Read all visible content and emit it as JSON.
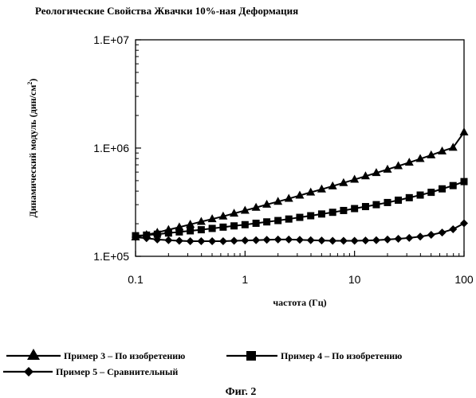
{
  "chart_data": {
    "type": "line",
    "title": "Реологические Свойства Жвачки 10%-ная Деформация",
    "xlabel": "частота (Гц)",
    "ylabel_main": "Динамический модуль (дин/см",
    "ylabel_sup": "2",
    "ylabel_tail": ")",
    "x_scale": "log",
    "y_scale": "log",
    "xlim": [
      0.1,
      100
    ],
    "ylim": [
      100000,
      10000000
    ],
    "x_ticks": [
      {
        "value": 0.1,
        "label": "0.1"
      },
      {
        "value": 1,
        "label": "1"
      },
      {
        "value": 10,
        "label": "10"
      },
      {
        "value": 100,
        "label": "100"
      }
    ],
    "y_ticks": [
      {
        "value": 100000,
        "label": "1.E+05"
      },
      {
        "value": 1000000,
        "label": "1.E+06"
      },
      {
        "value": 10000000,
        "label": "1.E+07"
      }
    ],
    "grid": false,
    "legend_position": "bottom",
    "x": [
      0.1,
      0.126,
      0.158,
      0.2,
      0.251,
      0.316,
      0.398,
      0.501,
      0.631,
      0.794,
      1,
      1.26,
      1.58,
      2,
      2.51,
      3.16,
      3.98,
      5.01,
      6.31,
      7.94,
      10,
      12.6,
      15.8,
      20,
      25.1,
      31.6,
      39.8,
      50.1,
      63.1,
      79.4,
      100
    ],
    "series": [
      {
        "name": "Пример 3 – По изобретению",
        "marker": "triangle",
        "values": [
          150000,
          158000,
          166000,
          176000,
          186000,
          197000,
          209000,
          221000,
          234000,
          249000,
          265000,
          282000,
          301000,
          320000,
          341000,
          365000,
          390000,
          416000,
          445000,
          477000,
          512000,
          550000,
          590000,
          635000,
          683000,
          735000,
          795000,
          860000,
          935000,
          1010000,
          1400000
        ]
      },
      {
        "name": "Пример 4 – По изобретению",
        "marker": "square",
        "values": [
          155000,
          157000,
          160000,
          164000,
          168000,
          172000,
          176000,
          181000,
          186000,
          191000,
          196000,
          202000,
          208000,
          214000,
          221000,
          229000,
          237000,
          246000,
          255000,
          265000,
          276000,
          288000,
          300000,
          314000,
          330000,
          348000,
          368000,
          390000,
          420000,
          450000,
          490000
        ]
      },
      {
        "name": "Пример 5 – Сравнительный",
        "marker": "diamond",
        "values": [
          150000,
          147000,
          143000,
          141000,
          139000,
          138000,
          138000,
          138000,
          138000,
          139000,
          140000,
          141000,
          142000,
          143000,
          143000,
          142000,
          141000,
          140000,
          139000,
          139000,
          139000,
          140000,
          141000,
          143000,
          145000,
          148000,
          152000,
          158000,
          166000,
          178000,
          202000
        ]
      }
    ]
  },
  "caption": "Фиг. 2"
}
